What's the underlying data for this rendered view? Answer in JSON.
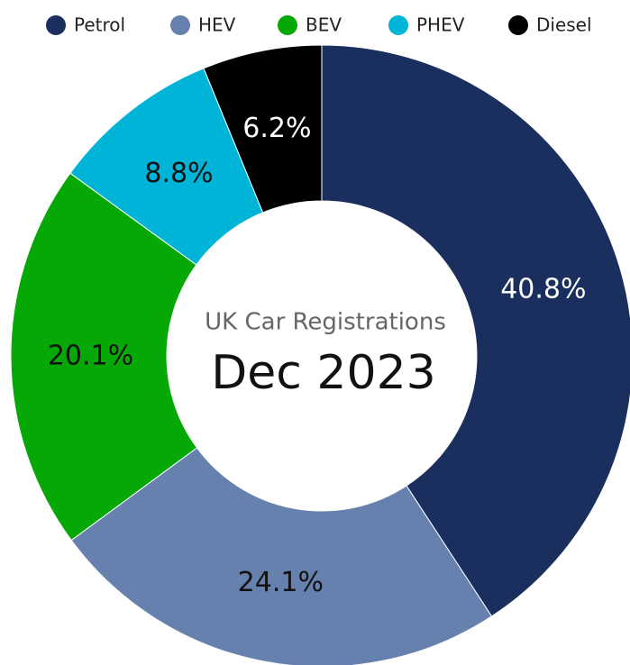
{
  "chart_data": {
    "type": "donut",
    "title": "UK Car Registrations",
    "subtitle": "Dec 2023",
    "categories": [
      "Petrol",
      "HEV",
      "BEV",
      "PHEV",
      "Diesel"
    ],
    "values": [
      40.8,
      24.1,
      20.1,
      8.8,
      6.2
    ],
    "value_labels": [
      "40.8%",
      "24.1%",
      "20.1%",
      "8.8%",
      "6.2%"
    ],
    "colors": [
      "#1a2f5e",
      "#6681ad",
      "#05a805",
      "#00b4d8",
      "#000000"
    ],
    "legend": "top"
  }
}
